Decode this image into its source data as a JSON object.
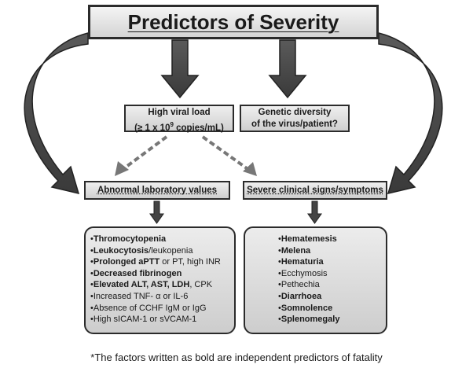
{
  "title": "Predictors of Severity",
  "viral_load": {
    "line1": "High viral load",
    "line2_prefix": "(≥ 1 x 10",
    "line2_exp": "9",
    "line2_suffix": " copies/mL)"
  },
  "genetic": {
    "line1": "Genetic diversity",
    "line2": "of the virus/patient?"
  },
  "lab_header": "Abnormal laboratory values",
  "clinical_header": "Severe clinical signs/symptoms",
  "lab_items": [
    {
      "segments": [
        {
          "text": "•",
          "bold": false
        },
        {
          "text": "Thromocytopenia",
          "bold": true
        }
      ]
    },
    {
      "segments": [
        {
          "text": "•",
          "bold": false
        },
        {
          "text": "Leukocytosis",
          "bold": true
        },
        {
          "text": "/leukopenia",
          "bold": false
        }
      ]
    },
    {
      "segments": [
        {
          "text": "•",
          "bold": false
        },
        {
          "text": "Prolonged aPTT",
          "bold": true
        },
        {
          "text": " or PT, high INR",
          "bold": false
        }
      ]
    },
    {
      "segments": [
        {
          "text": "•",
          "bold": false
        },
        {
          "text": "Decreased fibrinogen",
          "bold": true
        }
      ]
    },
    {
      "segments": [
        {
          "text": "•",
          "bold": false
        },
        {
          "text": "Elevated ALT, AST, LDH",
          "bold": true
        },
        {
          "text": ", CPK",
          "bold": false
        }
      ]
    },
    {
      "segments": [
        {
          "text": "•Increased TNF- α or IL-6",
          "bold": false
        }
      ]
    },
    {
      "segments": [
        {
          "text": "•Absence of CCHF IgM or IgG",
          "bold": false
        }
      ]
    },
    {
      "segments": [
        {
          "text": "•High sICAM-1 or sVCAM-1",
          "bold": false
        }
      ]
    }
  ],
  "clinical_items": [
    {
      "segments": [
        {
          "text": "•",
          "bold": false
        },
        {
          "text": "Hematemesis",
          "bold": true
        }
      ]
    },
    {
      "segments": [
        {
          "text": "•",
          "bold": false
        },
        {
          "text": "Melena",
          "bold": true
        }
      ]
    },
    {
      "segments": [
        {
          "text": "•",
          "bold": false
        },
        {
          "text": "Hematuria",
          "bold": true
        }
      ]
    },
    {
      "segments": [
        {
          "text": "•Ecchymosis",
          "bold": false
        }
      ]
    },
    {
      "segments": [
        {
          "text": "•Pethechia",
          "bold": false
        }
      ]
    },
    {
      "segments": [
        {
          "text": "•",
          "bold": false
        },
        {
          "text": "Diarrhoea",
          "bold": true
        }
      ]
    },
    {
      "segments": [
        {
          "text": "•",
          "bold": false
        },
        {
          "text": "Somnolence",
          "bold": true
        }
      ]
    },
    {
      "segments": [
        {
          "text": "•",
          "bold": false
        },
        {
          "text": "Splenomegaly",
          "bold": true
        }
      ]
    }
  ],
  "footnote": "*The factors written as bold are independent predictors of fatality"
}
